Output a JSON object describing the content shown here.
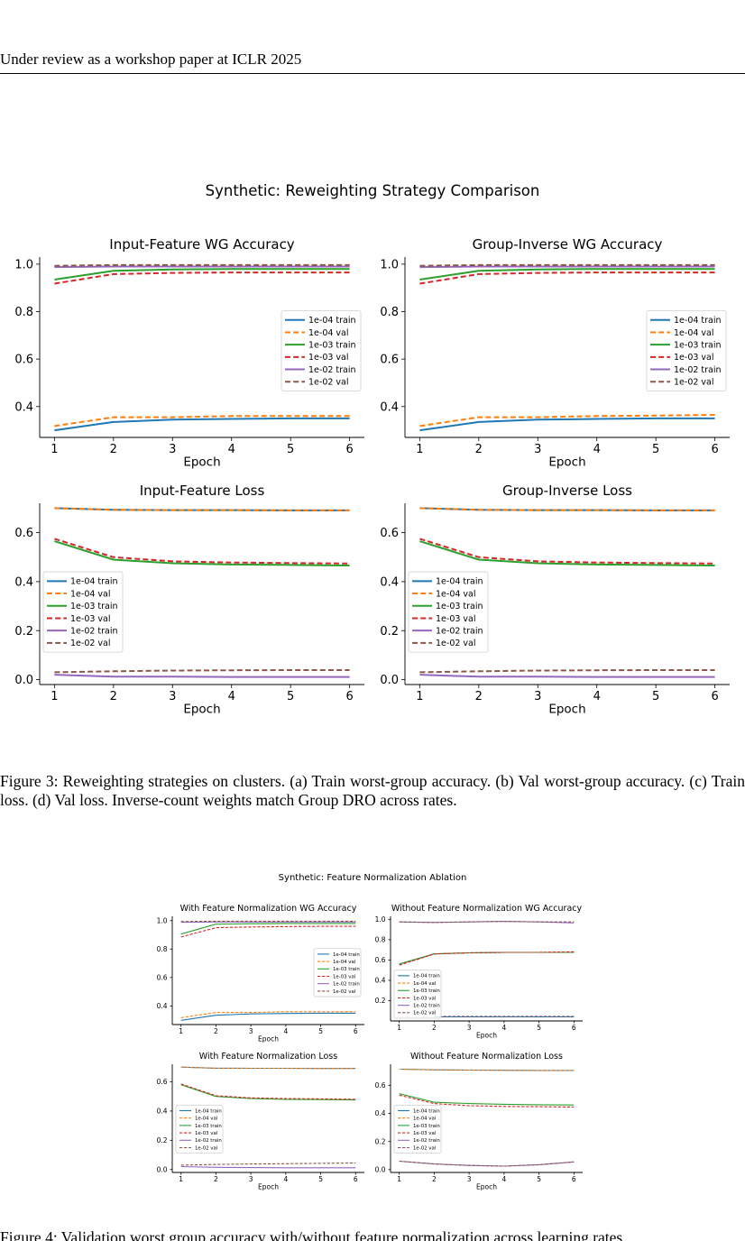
{
  "page": {
    "header": "Under review as a workshop paper at ICLR 2025",
    "figure3_caption": "Figure 3: Reweighting strategies on clusters. (a) Train worst-group accuracy. (b) Val worst-group accuracy. (c) Train loss. (d) Val loss. Inverse-count weights match Group DRO across rates.",
    "figure4_caption_fragment": "Figure 4: Validation worst group accuracy with/without feature normalization across learning rates."
  },
  "figures": [
    {
      "suptitle": "Synthetic: Reweighting Strategy Comparison",
      "legend_labels": [
        "1e-04 train",
        "1e-04 val",
        "1e-03 train",
        "1e-03 val",
        "1e-02 train",
        "1e-02 val"
      ]
    },
    {
      "suptitle": "Synthetic: Feature Normalization Ablation",
      "legend_labels": [
        "1e-04 train",
        "1e-04 val",
        "1e-03 train",
        "1e-03 val",
        "1e-02 train",
        "1e-02 val"
      ]
    }
  ],
  "styles": {
    "colors": [
      "#1f77b4",
      "#ff7f0e",
      "#2ca02c",
      "#d62728",
      "#9467bd",
      "#8c564b"
    ],
    "dashed": [
      false,
      true,
      false,
      true,
      false,
      true
    ]
  },
  "chart_data": [
    {
      "type": "line",
      "figure": 0,
      "title": "Input-Feature WG Accuracy",
      "xlabel": "Epoch",
      "ylabel": "",
      "x": [
        1,
        2,
        3,
        4,
        5,
        6
      ],
      "ylim": [
        0.27,
        1.03
      ],
      "yticks": [
        0.4,
        0.6,
        0.8,
        1.0
      ],
      "yticklabels": [
        "0.4",
        "0.6",
        "0.8",
        "1.0"
      ],
      "legend_position": "center-right",
      "series": [
        {
          "name": "1e-04 train",
          "values": [
            0.3,
            0.335,
            0.345,
            0.348,
            0.35,
            0.35
          ]
        },
        {
          "name": "1e-04 val",
          "values": [
            0.318,
            0.355,
            0.355,
            0.36,
            0.36,
            0.36
          ]
        },
        {
          "name": "1e-03 train",
          "values": [
            0.935,
            0.972,
            0.978,
            0.98,
            0.98,
            0.98
          ]
        },
        {
          "name": "1e-03 val",
          "values": [
            0.918,
            0.958,
            0.963,
            0.965,
            0.965,
            0.965
          ]
        },
        {
          "name": "1e-02 train",
          "values": [
            0.988,
            0.99,
            0.99,
            0.99,
            0.99,
            0.99
          ]
        },
        {
          "name": "1e-02 val",
          "values": [
            0.993,
            0.996,
            0.996,
            0.996,
            0.996,
            0.996
          ]
        }
      ]
    },
    {
      "type": "line",
      "figure": 0,
      "title": "Group-Inverse WG Accuracy",
      "xlabel": "Epoch",
      "ylabel": "",
      "x": [
        1,
        2,
        3,
        4,
        5,
        6
      ],
      "ylim": [
        0.27,
        1.03
      ],
      "yticks": [
        0.4,
        0.6,
        0.8,
        1.0
      ],
      "yticklabels": [
        "0.4",
        "0.6",
        "0.8",
        "1.0"
      ],
      "legend_position": "center-right",
      "series": [
        {
          "name": "1e-04 train",
          "values": [
            0.3,
            0.335,
            0.345,
            0.348,
            0.35,
            0.35
          ]
        },
        {
          "name": "1e-04 val",
          "values": [
            0.318,
            0.355,
            0.355,
            0.36,
            0.362,
            0.365
          ]
        },
        {
          "name": "1e-03 train",
          "values": [
            0.935,
            0.972,
            0.978,
            0.98,
            0.98,
            0.98
          ]
        },
        {
          "name": "1e-03 val",
          "values": [
            0.918,
            0.958,
            0.963,
            0.965,
            0.965,
            0.965
          ]
        },
        {
          "name": "1e-02 train",
          "values": [
            0.988,
            0.99,
            0.99,
            0.99,
            0.99,
            0.99
          ]
        },
        {
          "name": "1e-02 val",
          "values": [
            0.993,
            0.996,
            0.996,
            0.996,
            0.996,
            0.996
          ]
        }
      ]
    },
    {
      "type": "line",
      "figure": 0,
      "title": "Input-Feature Loss",
      "xlabel": "Epoch",
      "ylabel": "",
      "x": [
        1,
        2,
        3,
        4,
        5,
        6
      ],
      "ylim": [
        -0.02,
        0.72
      ],
      "yticks": [
        0.0,
        0.2,
        0.4,
        0.6
      ],
      "yticklabels": [
        "0.0",
        "0.2",
        "0.4",
        "0.6"
      ],
      "legend_position": "center-left",
      "series": [
        {
          "name": "1e-04 train",
          "values": [
            0.7,
            0.693,
            0.692,
            0.692,
            0.691,
            0.691
          ]
        },
        {
          "name": "1e-04 val",
          "values": [
            0.7,
            0.693,
            0.692,
            0.692,
            0.691,
            0.691
          ]
        },
        {
          "name": "1e-03 train",
          "values": [
            0.565,
            0.49,
            0.475,
            0.47,
            0.468,
            0.466
          ]
        },
        {
          "name": "1e-03 val",
          "values": [
            0.575,
            0.5,
            0.483,
            0.478,
            0.476,
            0.474
          ]
        },
        {
          "name": "1e-02 train",
          "values": [
            0.02,
            0.012,
            0.012,
            0.011,
            0.011,
            0.011
          ]
        },
        {
          "name": "1e-02 val",
          "values": [
            0.03,
            0.034,
            0.037,
            0.038,
            0.039,
            0.039
          ]
        }
      ]
    },
    {
      "type": "line",
      "figure": 0,
      "title": "Group-Inverse Loss",
      "xlabel": "Epoch",
      "ylabel": "",
      "x": [
        1,
        2,
        3,
        4,
        5,
        6
      ],
      "ylim": [
        -0.02,
        0.72
      ],
      "yticks": [
        0.0,
        0.2,
        0.4,
        0.6
      ],
      "yticklabels": [
        "0.0",
        "0.2",
        "0.4",
        "0.6"
      ],
      "legend_position": "center-left",
      "series": [
        {
          "name": "1e-04 train",
          "values": [
            0.7,
            0.693,
            0.692,
            0.692,
            0.691,
            0.691
          ]
        },
        {
          "name": "1e-04 val",
          "values": [
            0.7,
            0.693,
            0.692,
            0.692,
            0.691,
            0.691
          ]
        },
        {
          "name": "1e-03 train",
          "values": [
            0.565,
            0.49,
            0.475,
            0.47,
            0.468,
            0.466
          ]
        },
        {
          "name": "1e-03 val",
          "values": [
            0.575,
            0.5,
            0.483,
            0.478,
            0.476,
            0.474
          ]
        },
        {
          "name": "1e-02 train",
          "values": [
            0.02,
            0.012,
            0.012,
            0.011,
            0.011,
            0.011
          ]
        },
        {
          "name": "1e-02 val",
          "values": [
            0.03,
            0.034,
            0.037,
            0.038,
            0.039,
            0.039
          ]
        }
      ]
    },
    {
      "type": "line",
      "figure": 1,
      "title": "With Feature Normalization WG Accuracy",
      "xlabel": "Epoch",
      "ylabel": "",
      "x": [
        1,
        2,
        3,
        4,
        5,
        6
      ],
      "ylim": [
        0.27,
        1.03
      ],
      "yticks": [
        0.4,
        0.6,
        0.8,
        1.0
      ],
      "yticklabels": [
        "0.4",
        "0.6",
        "0.8",
        "1.0"
      ],
      "legend_position": "center-right",
      "series": [
        {
          "name": "1e-04 train",
          "values": [
            0.3,
            0.335,
            0.345,
            0.348,
            0.35,
            0.35
          ]
        },
        {
          "name": "1e-04 val",
          "values": [
            0.318,
            0.355,
            0.355,
            0.36,
            0.36,
            0.36
          ]
        },
        {
          "name": "1e-03 train",
          "values": [
            0.905,
            0.975,
            0.978,
            0.98,
            0.98,
            0.98
          ]
        },
        {
          "name": "1e-03 val",
          "values": [
            0.885,
            0.95,
            0.955,
            0.958,
            0.96,
            0.96
          ]
        },
        {
          "name": "1e-02 train",
          "values": [
            0.988,
            0.99,
            0.99,
            0.99,
            0.99,
            0.99
          ]
        },
        {
          "name": "1e-02 val",
          "values": [
            0.993,
            0.996,
            0.996,
            0.996,
            0.996,
            0.996
          ]
        }
      ]
    },
    {
      "type": "line",
      "figure": 1,
      "title": "Without Feature Normalization WG Accuracy",
      "xlabel": "Epoch",
      "ylabel": "",
      "x": [
        1,
        2,
        3,
        4,
        5,
        6
      ],
      "ylim": [
        0.0,
        1.03
      ],
      "yticks": [
        0.2,
        0.4,
        0.6,
        0.8,
        1.0
      ],
      "yticklabels": [
        "0.2",
        "0.4",
        "0.6",
        "0.8",
        "1.0"
      ],
      "legend_position": "lower-left",
      "series": [
        {
          "name": "1e-04 train",
          "values": [
            0.56,
            0.66,
            0.67,
            0.675,
            0.675,
            0.675
          ]
        },
        {
          "name": "1e-04 val",
          "values": [
            0.55,
            0.66,
            0.67,
            0.675,
            0.675,
            0.68
          ]
        },
        {
          "name": "1e-03 train",
          "values": [
            0.56,
            0.66,
            0.67,
            0.675,
            0.675,
            0.675
          ]
        },
        {
          "name": "1e-03 val",
          "values": [
            0.55,
            0.66,
            0.67,
            0.675,
            0.675,
            0.68
          ]
        },
        {
          "name": "1e-02 train",
          "values": [
            0.975,
            0.97,
            0.975,
            0.98,
            0.975,
            0.965
          ]
        },
        {
          "name": "1e-02 val",
          "values": [
            0.975,
            0.97,
            0.975,
            0.98,
            0.975,
            0.975
          ]
        },
        {
          "name": "",
          "values": [
            null,
            0.04,
            0.04,
            0.04,
            0.04,
            0.04
          ],
          "color_index": 0,
          "dashed_override": false
        },
        {
          "name": "",
          "values": [
            null,
            0.045,
            0.045,
            0.045,
            0.045,
            0.045
          ],
          "color_index": 5,
          "dashed_override": true
        }
      ]
    },
    {
      "type": "line",
      "figure": 1,
      "title": "With Feature Normalization Loss",
      "xlabel": "Epoch",
      "ylabel": "",
      "x": [
        1,
        2,
        3,
        4,
        5,
        6
      ],
      "ylim": [
        -0.02,
        0.72
      ],
      "yticks": [
        0.0,
        0.2,
        0.4,
        0.6
      ],
      "yticklabels": [
        "0.0",
        "0.2",
        "0.4",
        "0.6"
      ],
      "legend_position": "center-left",
      "series": [
        {
          "name": "1e-04 train",
          "values": [
            0.7,
            0.693,
            0.692,
            0.692,
            0.691,
            0.691
          ]
        },
        {
          "name": "1e-04 val",
          "values": [
            0.7,
            0.693,
            0.692,
            0.692,
            0.691,
            0.691
          ]
        },
        {
          "name": "1e-03 train",
          "values": [
            0.58,
            0.5,
            0.485,
            0.48,
            0.478,
            0.476
          ]
        },
        {
          "name": "1e-03 val",
          "values": [
            0.585,
            0.505,
            0.49,
            0.485,
            0.483,
            0.48
          ]
        },
        {
          "name": "1e-02 train",
          "values": [
            0.02,
            0.015,
            0.013,
            0.012,
            0.012,
            0.012
          ]
        },
        {
          "name": "1e-02 val",
          "values": [
            0.03,
            0.035,
            0.038,
            0.04,
            0.042,
            0.045
          ]
        }
      ]
    },
    {
      "type": "line",
      "figure": 1,
      "title": "Without Feature Normalization Loss",
      "xlabel": "Epoch",
      "ylabel": "",
      "x": [
        1,
        2,
        3,
        4,
        5,
        6
      ],
      "ylim": [
        -0.02,
        0.75
      ],
      "yticks": [
        0.0,
        0.2,
        0.4,
        0.6
      ],
      "yticklabels": [
        "0.0",
        "0.2",
        "0.4",
        "0.6"
      ],
      "legend_position": "center-left",
      "series": [
        {
          "name": "1e-04 train",
          "values": [
            0.715,
            0.71,
            0.708,
            0.707,
            0.706,
            0.706
          ]
        },
        {
          "name": "1e-04 val",
          "values": [
            0.715,
            0.71,
            0.708,
            0.707,
            0.706,
            0.706
          ]
        },
        {
          "name": "1e-03 train",
          "values": [
            0.54,
            0.48,
            0.47,
            0.465,
            0.462,
            0.46
          ]
        },
        {
          "name": "1e-03 val",
          "values": [
            0.53,
            0.47,
            0.455,
            0.45,
            0.448,
            0.445
          ]
        },
        {
          "name": "1e-02 train",
          "values": [
            0.06,
            0.04,
            0.03,
            0.025,
            0.035,
            0.055
          ]
        },
        {
          "name": "1e-02 val",
          "values": [
            0.06,
            0.04,
            0.03,
            0.025,
            0.035,
            0.055
          ]
        }
      ]
    }
  ]
}
